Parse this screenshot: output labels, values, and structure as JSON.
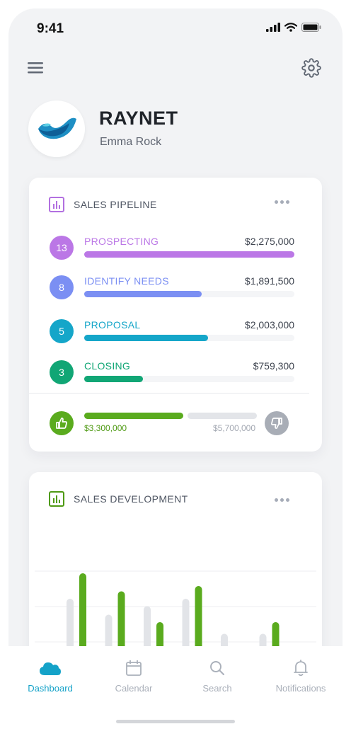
{
  "status": {
    "time": "9:41"
  },
  "profile": {
    "brand": "RAYNET",
    "user": "Emma Rock"
  },
  "pipeline": {
    "title": "SALES PIPELINE",
    "stages": [
      {
        "count": "13",
        "name": "PROSPECTING",
        "amount": "$2,275,000",
        "progress": 1.0,
        "color": "#bb77e6"
      },
      {
        "count": "8",
        "name": "IDENTIFY NEEDS",
        "amount": "$1,891,500",
        "progress": 0.56,
        "color": "#7b8ff3"
      },
      {
        "count": "5",
        "name": "PROPOSAL",
        "amount": "$2,003,000",
        "progress": 0.59,
        "color": "#15a6c9"
      },
      {
        "count": "3",
        "name": "CLOSING",
        "amount": "$759,300",
        "progress": 0.28,
        "color": "#11a675"
      }
    ],
    "won": "$3,300,000",
    "lost": "$5,700,000"
  },
  "development": {
    "title": "SALES DEVELOPMENT"
  },
  "chart_data": {
    "type": "bar",
    "series": [
      {
        "values": [
          0.74,
          0.59,
          0.67,
          0.74,
          0.41,
          0.41
        ],
        "color": "#e2e4e8"
      },
      {
        "values": [
          0.98,
          0.81,
          0.52,
          0.86,
          0.25,
          0.52
        ],
        "color": "#5aab1e"
      }
    ],
    "grid": true
  },
  "tabs": [
    {
      "label": "Dashboard",
      "icon": "cloud-icon",
      "active": true
    },
    {
      "label": "Calendar",
      "icon": "calendar-icon",
      "active": false
    },
    {
      "label": "Search",
      "icon": "search-icon",
      "active": false
    },
    {
      "label": "Notifications",
      "icon": "bell-icon",
      "active": false
    }
  ],
  "colors": {
    "accent": "#14a2c8",
    "won": "#5aab1e",
    "lost": "#a8adb6",
    "pipeline_icon": "#b270e0",
    "development_icon": "#4f9a14"
  }
}
